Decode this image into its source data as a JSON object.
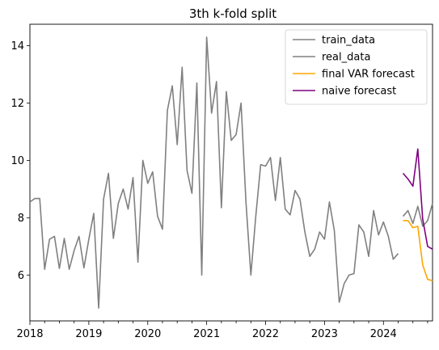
{
  "chart_data": {
    "type": "line",
    "title": "3th k-fold split",
    "xlabel": "",
    "ylabel": "",
    "xlim": [
      "2018-01",
      "2024-11"
    ],
    "ylim": [
      4.4,
      14.75
    ],
    "grid": false,
    "legend_placement": "top-right",
    "x_ticks": [
      "2018",
      "2019",
      "2020",
      "2021",
      "2022",
      "2023",
      "2024"
    ],
    "y_ticks": [
      6,
      8,
      10,
      12,
      14
    ],
    "series": [
      {
        "name": "train_data",
        "color": "#808080",
        "x": [
          "2018-01",
          "2018-02",
          "2018-03",
          "2018-04",
          "2018-05",
          "2018-06",
          "2018-07",
          "2018-08",
          "2018-09",
          "2018-10",
          "2018-11",
          "2018-12",
          "2019-01",
          "2019-02",
          "2019-03",
          "2019-04",
          "2019-05",
          "2019-06",
          "2019-07",
          "2019-08",
          "2019-09",
          "2019-10",
          "2019-11",
          "2019-12",
          "2020-01",
          "2020-02",
          "2020-03",
          "2020-04",
          "2020-05",
          "2020-06",
          "2020-07",
          "2020-08",
          "2020-09",
          "2020-10",
          "2020-11",
          "2020-12",
          "2021-01",
          "2021-02",
          "2021-03",
          "2021-04",
          "2021-05",
          "2021-06",
          "2021-07",
          "2021-08",
          "2021-09",
          "2021-10",
          "2021-11",
          "2021-12",
          "2022-01",
          "2022-02",
          "2022-03",
          "2022-04",
          "2022-05",
          "2022-06",
          "2022-07",
          "2022-08",
          "2022-09",
          "2022-10",
          "2022-11",
          "2022-12",
          "2023-01",
          "2023-02",
          "2023-03",
          "2023-04",
          "2023-05",
          "2023-06",
          "2023-07",
          "2023-08",
          "2023-09",
          "2023-10",
          "2023-11",
          "2023-12",
          "2024-01",
          "2024-02",
          "2024-03",
          "2024-04"
        ],
        "values": [
          8.55,
          8.67,
          8.67,
          6.2,
          7.25,
          7.35,
          6.23,
          7.28,
          6.2,
          6.85,
          7.35,
          6.25,
          7.25,
          8.15,
          4.85,
          8.65,
          9.55,
          7.28,
          8.5,
          9.0,
          8.3,
          9.4,
          6.45,
          10.0,
          9.2,
          9.6,
          8.05,
          7.6,
          11.75,
          12.6,
          10.55,
          13.25,
          9.65,
          8.85,
          12.7,
          6.0,
          14.3,
          11.65,
          12.75,
          8.35,
          12.4,
          10.7,
          10.9,
          12.0,
          8.55,
          6.0,
          8.05,
          9.85,
          9.8,
          10.1,
          8.6,
          10.1,
          8.3,
          8.1,
          8.95,
          8.65,
          7.5,
          6.65,
          6.9,
          7.5,
          7.25,
          8.55,
          7.55,
          5.05,
          5.7,
          6.0,
          6.05,
          7.75,
          7.5,
          6.65,
          8.25,
          7.4,
          7.85,
          7.35,
          6.55,
          6.75
        ]
      },
      {
        "name": "real_data",
        "color": "#808080",
        "x": [
          "2024-05",
          "2024-06",
          "2024-07",
          "2024-08",
          "2024-09",
          "2024-10",
          "2024-11"
        ],
        "values": [
          8.05,
          8.25,
          7.8,
          8.4,
          7.7,
          7.9,
          8.5
        ]
      },
      {
        "name": "final VAR forecast",
        "color": "#FFA500",
        "x": [
          "2024-05",
          "2024-06",
          "2024-07",
          "2024-08",
          "2024-09",
          "2024-10",
          "2024-11"
        ],
        "values": [
          7.9,
          7.9,
          7.65,
          7.7,
          6.35,
          5.85,
          5.8
        ]
      },
      {
        "name": "naive forecast",
        "color": "#800080",
        "x": [
          "2024-05",
          "2024-06",
          "2024-07",
          "2024-08",
          "2024-09",
          "2024-10",
          "2024-11"
        ],
        "values": [
          9.55,
          9.35,
          9.1,
          10.4,
          7.95,
          7.0,
          6.9
        ]
      }
    ]
  }
}
